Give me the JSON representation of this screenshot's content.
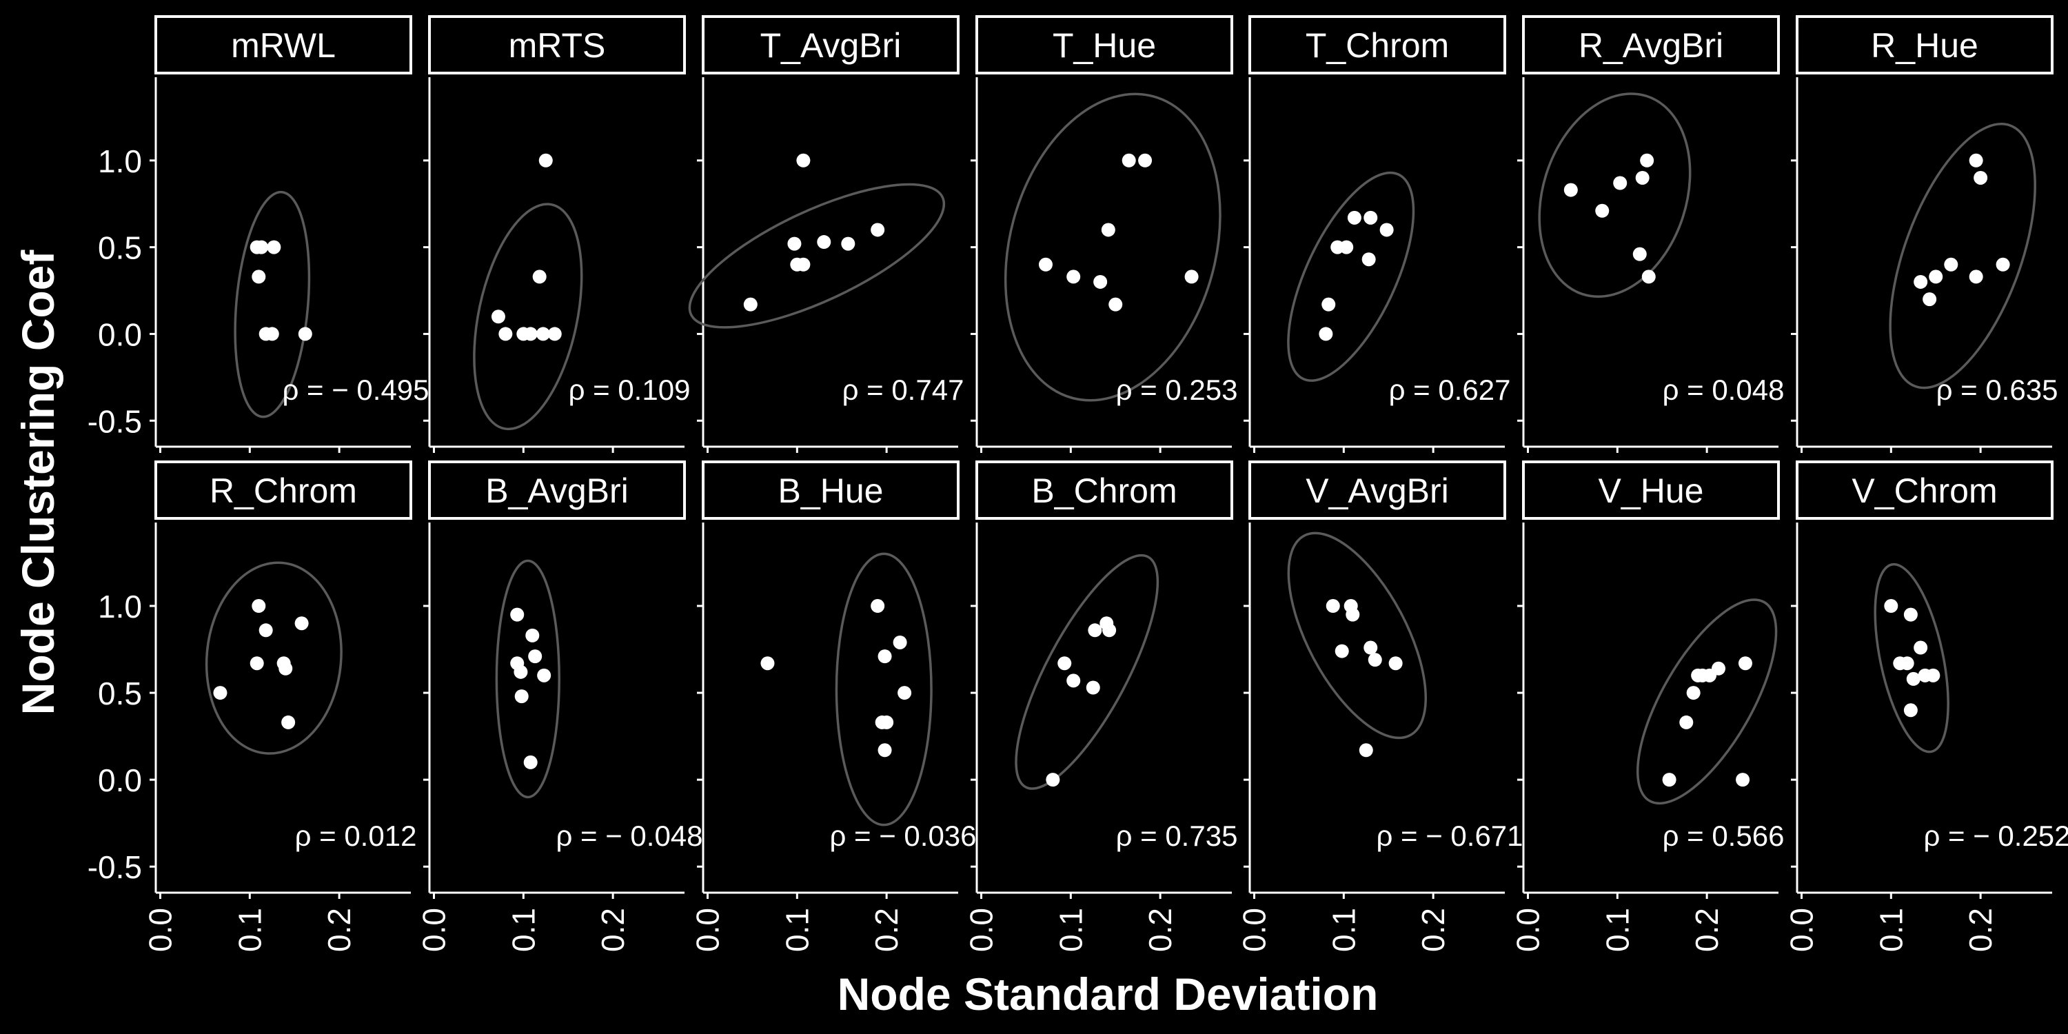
{
  "figure": {
    "xlabel": "Node Standard Deviation",
    "ylabel": "Node Clustering Coef",
    "background": "#000000",
    "point_color": "#ffffff",
    "ellipse_color": "#5a5a5a"
  },
  "chart_data": {
    "type": "scatter",
    "facet_rows": 2,
    "facet_cols": 7,
    "xlim": [
      -0.005,
      0.28
    ],
    "ylim": [
      -0.65,
      1.48
    ],
    "x_ticks": [
      0.0,
      0.1,
      0.2
    ],
    "x_tick_labels": [
      "0.0",
      "0.1",
      "0.2"
    ],
    "y_ticks": [
      1.0,
      0.5,
      0.0,
      -0.5
    ],
    "y_tick_labels": [
      "1.0",
      "0.5",
      "0.0",
      "-0.5"
    ],
    "grid": false,
    "panels": [
      {
        "name": "mRWL",
        "rho": "ρ = − 0.495",
        "x": [
          0.108,
          0.113,
          0.127,
          0.11,
          0.118,
          0.125,
          0.162
        ],
        "y": [
          0.5,
          0.5,
          0.5,
          0.33,
          0.0,
          0.0,
          0.0
        ],
        "ellipse": {
          "cx": 0.125,
          "cy": 0.17,
          "rx": 0.04,
          "ry": 0.65,
          "angle": 5
        }
      },
      {
        "name": "mRTS",
        "rho": "ρ = 0.109",
        "x": [
          0.125,
          0.118,
          0.072,
          0.08,
          0.1,
          0.108,
          0.122,
          0.135
        ],
        "y": [
          1.0,
          0.33,
          0.1,
          0.0,
          0.0,
          0.0,
          0.0,
          0.0
        ],
        "ellipse": {
          "cx": 0.105,
          "cy": 0.1,
          "rx": 0.055,
          "ry": 0.66,
          "angle": 12
        }
      },
      {
        "name": "T_AvgBri",
        "rho": "ρ = 0.747",
        "x": [
          0.107,
          0.097,
          0.107,
          0.1,
          0.13,
          0.157,
          0.19,
          0.048
        ],
        "y": [
          1.0,
          0.52,
          0.4,
          0.4,
          0.53,
          0.52,
          0.6,
          0.17
        ],
        "ellipse": {
          "cx": 0.122,
          "cy": 0.45,
          "rx": 0.155,
          "ry": 0.26,
          "angle": -25
        }
      },
      {
        "name": "T_Hue",
        "rho": "ρ = 0.253",
        "x": [
          0.165,
          0.183,
          0.142,
          0.072,
          0.103,
          0.133,
          0.15,
          0.235
        ],
        "y": [
          1.0,
          1.0,
          0.6,
          0.4,
          0.33,
          0.3,
          0.17,
          0.33
        ],
        "ellipse": {
          "cx": 0.147,
          "cy": 0.5,
          "rx": 0.115,
          "ry": 0.9,
          "angle": 15
        }
      },
      {
        "name": "T_Chrom",
        "rho": "ρ = 0.627",
        "x": [
          0.112,
          0.13,
          0.093,
          0.103,
          0.148,
          0.128,
          0.083,
          0.08
        ],
        "y": [
          0.67,
          0.67,
          0.5,
          0.5,
          0.6,
          0.43,
          0.17,
          0.0
        ],
        "ellipse": {
          "cx": 0.108,
          "cy": 0.33,
          "rx": 0.05,
          "ry": 0.65,
          "angle": 25
        }
      },
      {
        "name": "R_AvgBri",
        "rho": "ρ = 0.048",
        "x": [
          0.133,
          0.128,
          0.048,
          0.103,
          0.083,
          0.125,
          0.135
        ],
        "y": [
          1.0,
          0.9,
          0.83,
          0.87,
          0.71,
          0.46,
          0.33
        ],
        "ellipse": {
          "cx": 0.097,
          "cy": 0.8,
          "rx": 0.08,
          "ry": 0.6,
          "angle": 18
        }
      },
      {
        "name": "R_Hue",
        "rho": "ρ = 0.635",
        "x": [
          0.195,
          0.2,
          0.167,
          0.195,
          0.225,
          0.133,
          0.15,
          0.143
        ],
        "y": [
          1.0,
          0.9,
          0.4,
          0.33,
          0.4,
          0.3,
          0.33,
          0.2
        ],
        "ellipse": {
          "cx": 0.18,
          "cy": 0.45,
          "rx": 0.065,
          "ry": 0.8,
          "angle": 20
        }
      },
      {
        "name": "R_Chrom",
        "rho": "ρ = 0.012",
        "x": [
          0.11,
          0.118,
          0.108,
          0.138,
          0.14,
          0.158,
          0.067,
          0.143
        ],
        "y": [
          1.0,
          0.86,
          0.67,
          0.67,
          0.64,
          0.9,
          0.5,
          0.33
        ],
        "ellipse": {
          "cx": 0.127,
          "cy": 0.7,
          "rx": 0.075,
          "ry": 0.55,
          "angle": 5
        }
      },
      {
        "name": "B_AvgBri",
        "rho": "ρ = − 0.048",
        "x": [
          0.093,
          0.11,
          0.093,
          0.097,
          0.123,
          0.113,
          0.098,
          0.108
        ],
        "y": [
          0.95,
          0.83,
          0.67,
          0.62,
          0.6,
          0.71,
          0.48,
          0.1
        ],
        "ellipse": {
          "cx": 0.105,
          "cy": 0.58,
          "rx": 0.035,
          "ry": 0.68,
          "angle": 0
        }
      },
      {
        "name": "B_Hue",
        "rho": "ρ = − 0.036",
        "x": [
          0.19,
          0.215,
          0.198,
          0.067,
          0.22,
          0.195,
          0.2,
          0.198
        ],
        "y": [
          1.0,
          0.79,
          0.71,
          0.67,
          0.5,
          0.33,
          0.33,
          0.17
        ],
        "ellipse": {
          "cx": 0.197,
          "cy": 0.52,
          "rx": 0.053,
          "ry": 0.78,
          "angle": 0
        }
      },
      {
        "name": "B_Chrom",
        "rho": "ρ = 0.735",
        "x": [
          0.14,
          0.143,
          0.127,
          0.093,
          0.103,
          0.125,
          0.08
        ],
        "y": [
          0.9,
          0.86,
          0.86,
          0.67,
          0.57,
          0.53,
          0.0
        ],
        "ellipse": {
          "cx": 0.118,
          "cy": 0.62,
          "rx": 0.045,
          "ry": 0.75,
          "angle": 28
        }
      },
      {
        "name": "V_AvgBri",
        "rho": "ρ = − 0.671",
        "x": [
          0.088,
          0.108,
          0.11,
          0.13,
          0.098,
          0.135,
          0.158,
          0.125
        ],
        "y": [
          1.0,
          1.0,
          0.95,
          0.76,
          0.74,
          0.69,
          0.67,
          0.17
        ],
        "ellipse": {
          "cx": 0.115,
          "cy": 0.83,
          "rx": 0.055,
          "ry": 0.65,
          "angle": -28
        }
      },
      {
        "name": "V_Hue",
        "rho": "ρ = 0.566",
        "x": [
          0.213,
          0.203,
          0.195,
          0.19,
          0.243,
          0.185,
          0.177,
          0.158,
          0.24
        ],
        "y": [
          0.64,
          0.6,
          0.6,
          0.6,
          0.67,
          0.5,
          0.33,
          0.0,
          0.0
        ],
        "ellipse": {
          "cx": 0.2,
          "cy": 0.45,
          "rx": 0.05,
          "ry": 0.66,
          "angle": 30
        }
      },
      {
        "name": "V_Chrom",
        "rho": "ρ = − 0.252",
        "x": [
          0.1,
          0.122,
          0.133,
          0.11,
          0.118,
          0.138,
          0.147,
          0.125,
          0.122
        ],
        "y": [
          1.0,
          0.95,
          0.76,
          0.67,
          0.67,
          0.6,
          0.6,
          0.58,
          0.4
        ],
        "ellipse": {
          "cx": 0.123,
          "cy": 0.7,
          "rx": 0.035,
          "ry": 0.55,
          "angle": -12
        }
      }
    ]
  }
}
